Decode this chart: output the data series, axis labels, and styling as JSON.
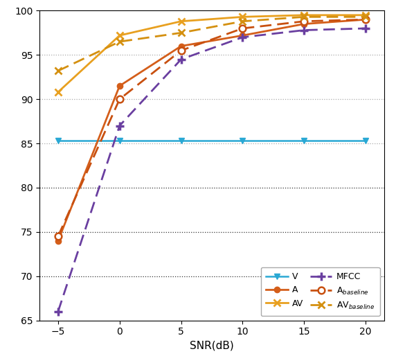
{
  "snr": [
    -5,
    0,
    5,
    10,
    15,
    20
  ],
  "V": [
    85.3,
    85.3,
    85.3,
    85.3,
    85.3,
    85.3
  ],
  "A": [
    74.0,
    91.5,
    96.0,
    97.2,
    98.5,
    99.0
  ],
  "AV": [
    90.8,
    97.2,
    98.8,
    99.3,
    99.5,
    99.5
  ],
  "MFCC": [
    66.0,
    87.0,
    94.5,
    97.0,
    97.8,
    98.0
  ],
  "A_baseline": [
    74.5,
    90.0,
    95.5,
    98.0,
    98.8,
    99.0
  ],
  "AV_baseline": [
    93.2,
    96.5,
    97.5,
    98.8,
    99.3,
    99.3
  ],
  "V_color": "#29a8d4",
  "A_color": "#d45e1a",
  "AV_color": "#e8a020",
  "MFCC_color": "#6a3fa0",
  "A_baseline_color": "#c85010",
  "AV_baseline_color": "#d49010",
  "xlabel": "SNR(dB)",
  "ylim": [
    65,
    100
  ],
  "yticks": [
    65,
    70,
    75,
    80,
    85,
    90,
    95,
    100
  ],
  "xticks": [
    -5,
    0,
    5,
    10,
    15,
    20
  ],
  "figsize": [
    5.72,
    5.14
  ],
  "dpi": 100
}
